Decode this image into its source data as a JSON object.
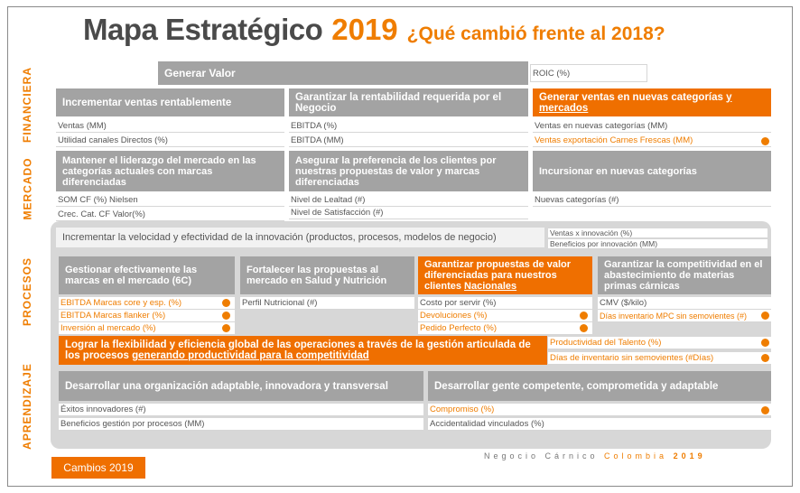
{
  "title": {
    "main": "Mapa Estratégico",
    "year": "2019",
    "subtitle": "¿Qué cambió frente al 2018?"
  },
  "sections": [
    "FINANCIERA",
    "MERCADO",
    "PROCESOS",
    "APRENDIZAJE"
  ],
  "financiera": {
    "generar_valor": "Generar Valor",
    "roic": "ROIC (%)",
    "obj1": {
      "title": "Incrementar ventas rentablemente",
      "kpis": [
        "Ventas (MM)",
        "Utilidad canales Directos (%)"
      ]
    },
    "obj2": {
      "title": "Garantizar la rentabilidad requerida por el Negocio",
      "kpis": [
        "EBITDA (%)",
        "EBITDA (MM)"
      ]
    },
    "obj3": {
      "title_a": "Generar ventas en nuevas categorías ",
      "title_u": "y mercados",
      "kpis": [
        "Ventas en nuevas categorías (MM)",
        "Ventas exportación Carnes Frescas (MM)"
      ]
    }
  },
  "mercado": {
    "obj1": {
      "title": "Mantener el liderazgo del mercado en las categorías actuales con marcas diferenciadas",
      "kpis": [
        "SOM CF (%) Nielsen",
        "Crec. Cat. CF Valor(%)"
      ]
    },
    "obj2": {
      "title": "Asegurar la preferencia de los clientes por nuestras propuestas de valor y marcas diferenciadas",
      "kpis": [
        "Nivel de Lealtad  (#)",
        "Nivel de Satisfacción (#)"
      ]
    },
    "obj3": {
      "title": "Incursionar en nuevas categorías",
      "kpis": [
        "Nuevas categorías (#)"
      ]
    }
  },
  "procesos": {
    "innovacion": {
      "title": "Incrementar la velocidad y efectividad de la innovación (productos, procesos, modelos de negocio)",
      "kpis": [
        "Ventas x innovación (%)",
        "Beneficios por innovación (MM)"
      ]
    },
    "obj1": {
      "title": "Gestionar efectivamente las marcas en el mercado (6C)",
      "kpis": [
        "EBITDA Marcas core y esp. (%)",
        "EBITDA Marcas flanker (%)",
        "Inversión al mercado (%)"
      ]
    },
    "obj2": {
      "title": "Fortalecer las propuestas al mercado en Salud y Nutrición",
      "kpis": [
        "Perfil Nutricional (#)"
      ]
    },
    "obj3": {
      "title_a": "Garantizar propuestas de valor diferenciadas para nuestros clientes ",
      "title_u": "Nacionales",
      "kpis": [
        "Costo por servir (%)",
        "Devoluciones (%)",
        "Pedido Perfecto (%)"
      ]
    },
    "obj4": {
      "title": "Garantizar la competitividad en el abastecimiento de materias primas cárnicas",
      "kpis": [
        "CMV ($/kilo)",
        "Días inventario MPC sin semovientes (#)"
      ]
    },
    "flex": {
      "title_a": "Lograr la flexibilidad y eficiencia global  de las operaciones a través de la gestión articulada de los procesos ",
      "title_u": "generando productividad para la competitividad",
      "kpis": [
        "Productividad del Talento (%)",
        "Días de inventario sin semovientes (#Días)"
      ]
    }
  },
  "aprendizaje": {
    "obj1": {
      "title": "Desarrollar una organización adaptable, innovadora y transversal",
      "kpis": [
        "Éxitos innovadores (#)",
        "Beneficios gestión por procesos (MM)"
      ]
    },
    "obj2": {
      "title": "Desarrollar gente competente, comprometida y adaptable",
      "kpis": [
        "Compromiso (%)",
        "Accidentalidad vinculados (%)"
      ]
    }
  },
  "footer": {
    "brand_a": "Negocio Cárnico ",
    "brand_b": "Colombia ",
    "brand_year": "2019",
    "cambios": "Cambios 2019"
  },
  "colors": {
    "accent": "#ef7d00",
    "box_gray": "#a3a3a3",
    "panel": "#d7d7d7"
  }
}
